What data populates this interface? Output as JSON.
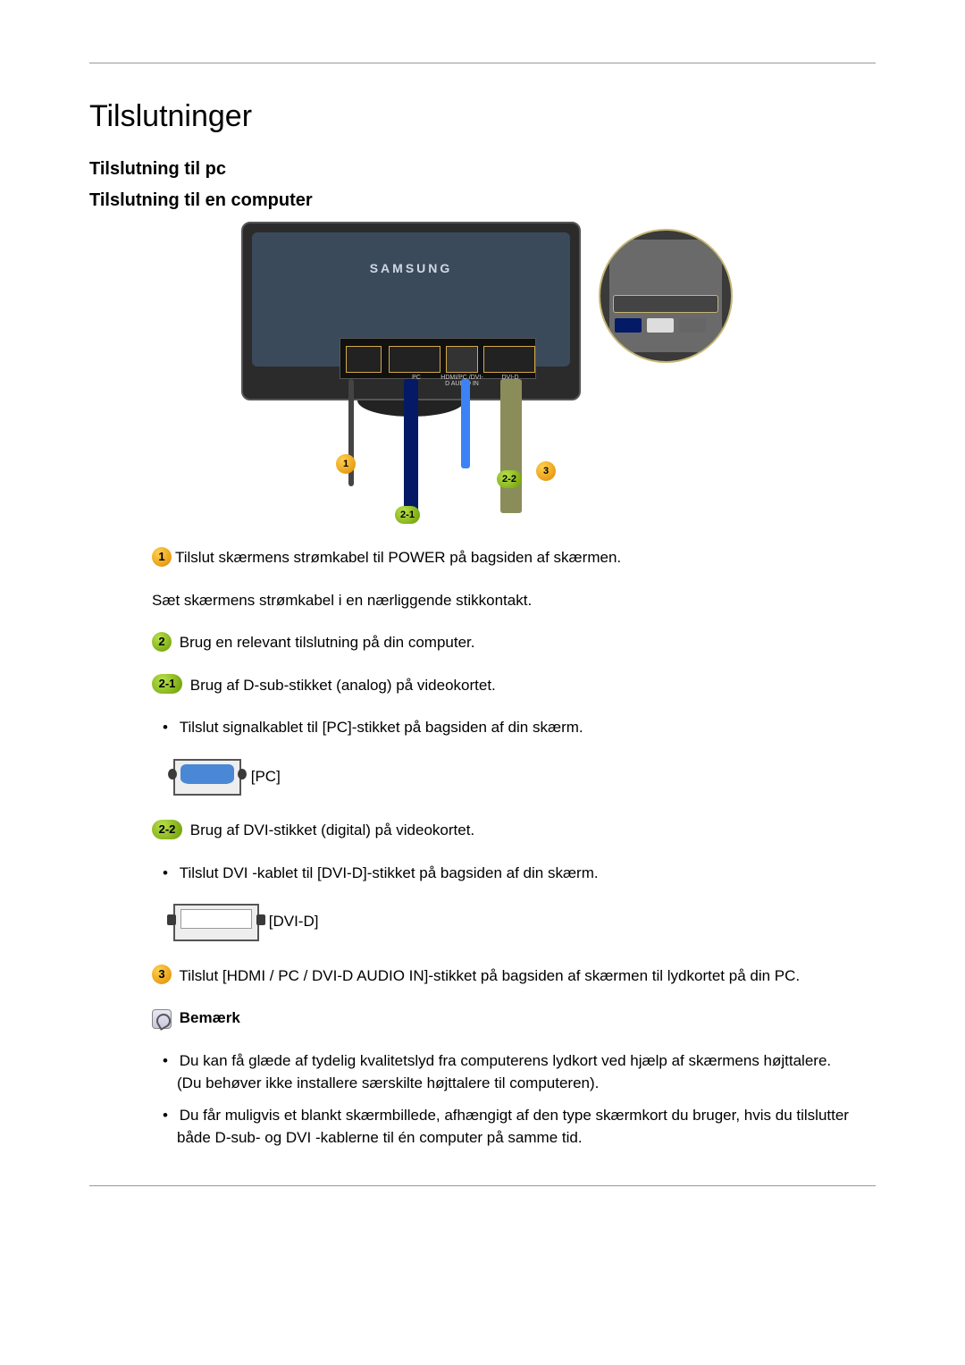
{
  "page": {
    "title": "Tilslutninger",
    "section1": "Tilslutning til pc",
    "section2": "Tilslutning til en computer"
  },
  "diagram": {
    "brand": "SAMSUNG",
    "port_pc": "PC",
    "port_audio": "HDMI/PC /DVI-D AUDIO IN",
    "port_dvi": "DVI-D",
    "marker1": "1",
    "marker21": "2-1",
    "marker22": "2-2",
    "marker3": "3"
  },
  "steps": {
    "s1_badge": "1",
    "s1_text": "Tilslut skærmens strømkabel til POWER på bagsiden af skærmen.",
    "s1_extra": "Sæt skærmens strømkabel i en nærliggende stikkontakt.",
    "s2_badge": "2",
    "s2_text": "Brug en relevant tilslutning på din computer.",
    "s21_badge": "2-1",
    "s21_text": "Brug af D-sub-stikket (analog) på videokortet.",
    "s21_bullet": "Tilslut signalkablet til [PC]-stikket på bagsiden af din skærm.",
    "s21_label": "[PC]",
    "s22_badge": "2-2",
    "s22_text": "Brug af DVI-stikket (digital) på videokortet.",
    "s22_bullet": "Tilslut DVI -kablet til [DVI-D]-stikket på bagsiden af din skærm.",
    "s22_label": "[DVI-D]",
    "s3_badge": "3",
    "s3_text": "Tilslut [HDMI / PC / DVI-D AUDIO IN]-stikket på bagsiden af skærmen til lydkortet på din PC."
  },
  "note": {
    "title": "Bemærk",
    "b1": "Du kan få glæde af tydelig kvalitetslyd fra computerens lydkort ved hjælp af skærmens højttalere. (Du behøver ikke installere særskilte højttalere til computeren).",
    "b2": "Du får muligvis et blankt skærmbillede, afhængigt af den type skærmkort du bruger, hvis du tilslutter både D-sub- og DVI -kablerne til én computer på samme tid."
  },
  "colors": {
    "badge_orange_light": "#ffcf4d",
    "badge_orange_dark": "#e08a00",
    "badge_green_light": "#b8e04d",
    "badge_green_dark": "#6a9a00",
    "vga_blue": "#4a88d6",
    "cable_blue": "#3b82f6",
    "hr": "#999999"
  }
}
